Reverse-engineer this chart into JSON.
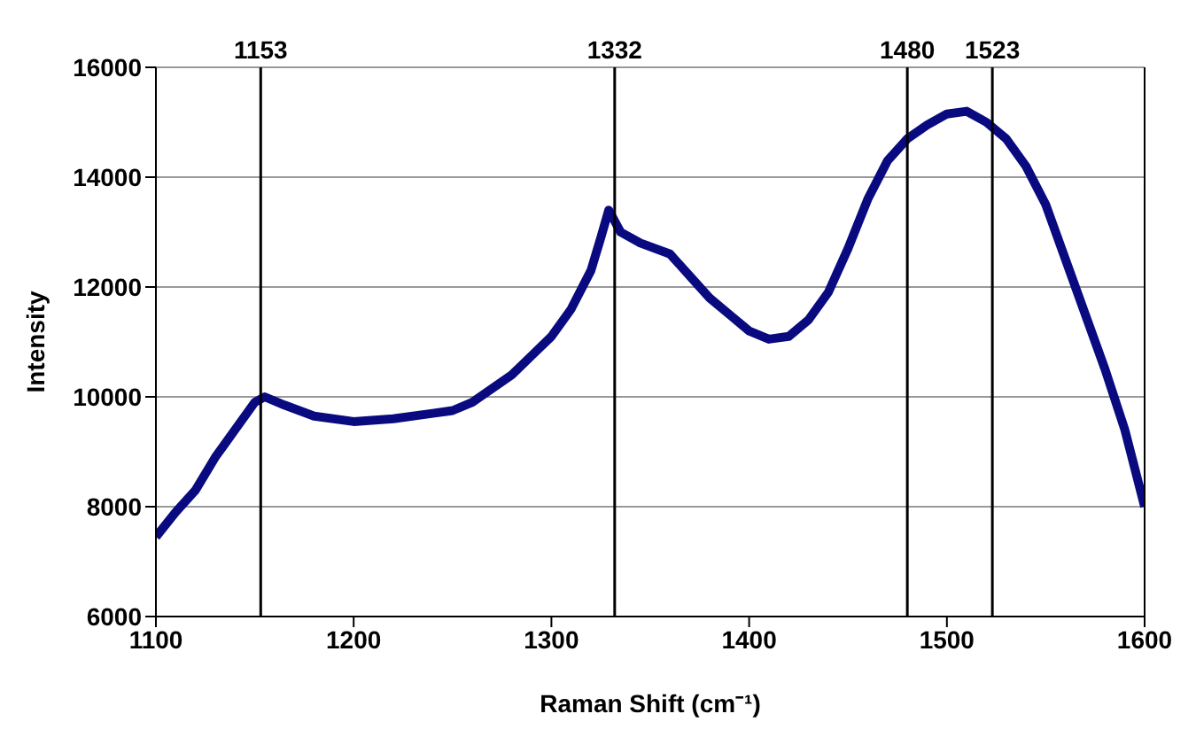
{
  "chart_data": {
    "type": "line",
    "xlabel": "Raman Shift (cm⁻¹)",
    "ylabel": "Intensity",
    "xlim": [
      1100,
      1600
    ],
    "xticks": [
      1100,
      1200,
      1300,
      1400,
      1500,
      1600
    ],
    "ylim": [
      6000,
      16000
    ],
    "yticks": [
      6000,
      8000,
      10000,
      12000,
      14000,
      16000
    ],
    "grid": "y",
    "legend": false,
    "marker": "none",
    "line_style": "solid",
    "series": [
      {
        "color": "#0a0a80",
        "x": [
          1100,
          1110,
          1120,
          1130,
          1140,
          1150,
          1155,
          1165,
          1180,
          1200,
          1220,
          1240,
          1250,
          1260,
          1270,
          1280,
          1290,
          1300,
          1310,
          1320,
          1325,
          1329,
          1335,
          1345,
          1360,
          1370,
          1380,
          1390,
          1400,
          1410,
          1420,
          1430,
          1440,
          1450,
          1460,
          1470,
          1480,
          1490,
          1500,
          1510,
          1520,
          1530,
          1540,
          1550,
          1560,
          1570,
          1580,
          1590,
          1600
        ],
        "values": [
          7450,
          7900,
          8300,
          8900,
          9400,
          9900,
          10000,
          9850,
          9650,
          9550,
          9600,
          9700,
          9750,
          9900,
          10150,
          10400,
          10750,
          11100,
          11600,
          12300,
          12900,
          13400,
          13000,
          12800,
          12600,
          12200,
          11800,
          11500,
          11200,
          11050,
          11100,
          11400,
          11900,
          12700,
          13600,
          14300,
          14700,
          14950,
          15150,
          15200,
          15000,
          14700,
          14200,
          13500,
          12500,
          11500,
          10500,
          9400,
          8000
        ]
      }
    ],
    "ref_lines": [
      {
        "axis": "x",
        "value": 1153,
        "label": "1153",
        "color": "#000000"
      },
      {
        "axis": "x",
        "value": 1332,
        "label": "1332",
        "color": "#000000"
      },
      {
        "axis": "x",
        "value": 1480,
        "label": "1480",
        "color": "#000000"
      },
      {
        "axis": "x",
        "value": 1523,
        "label": "1523",
        "color": "#000000"
      }
    ]
  }
}
